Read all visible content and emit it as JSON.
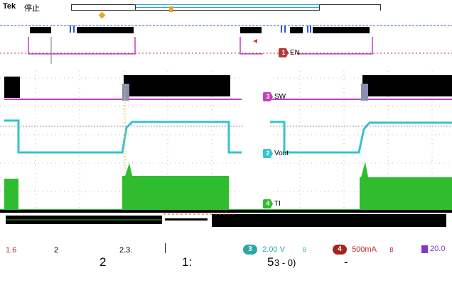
{
  "header": {
    "brand": "Tek",
    "state": "停止"
  },
  "channels": [
    {
      "id": "1",
      "name": "EN",
      "color": "#b13a3a"
    },
    {
      "id": "2",
      "name": "Vout",
      "color": "#33c3d3"
    },
    {
      "id": "3",
      "name": "SW",
      "color": "#c040c0"
    },
    {
      "id": "4",
      "name": "TI",
      "color": "#2fbd2f"
    }
  ],
  "readouts": {
    "left_line1": "1.6",
    "left_line2": "2",
    "left_val": "2.3.",
    "ch3_chip": "3",
    "ch3_scale": "2.00 V",
    "ch3_unit": "B",
    "ch4_chip": "4",
    "ch4_scale": "500mA",
    "ch4_unit": "B",
    "timebase": "20.0"
  },
  "footer": {
    "a": "2",
    "b": "1:",
    "c": "5",
    "d": "3 - 0)",
    "e": "-"
  },
  "colors": {
    "ch1": "#b13a3a",
    "ch2": "#33c3d3",
    "ch3": "#c040c0",
    "ch4": "#2fbd2f",
    "trigger": "#e9a52b",
    "overview": "#2a58d8"
  }
}
